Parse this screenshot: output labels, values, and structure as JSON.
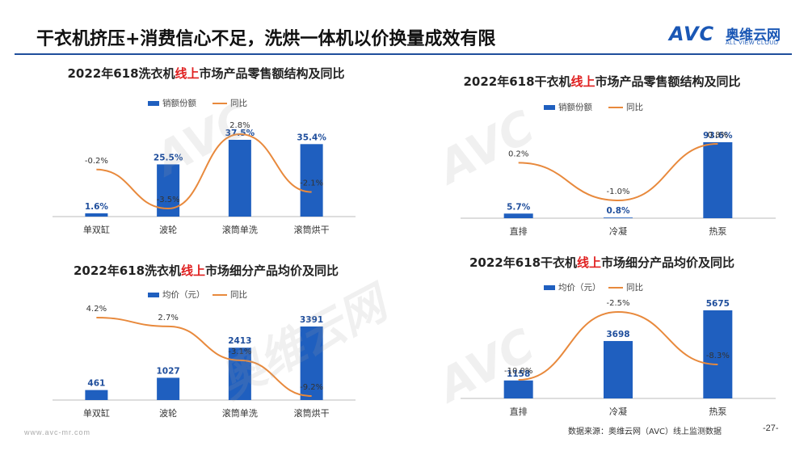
{
  "header": {
    "title": "干衣机挤压+消费信心不足，洗烘一体机以价换量成效有限",
    "logo_main": "AVC",
    "logo_cn": "奥维云网",
    "logo_en": "ALL VIEW CLOUD"
  },
  "watermark": {
    "main": "AVC",
    "cn": "奥维云网",
    "en": "ALL VIEW CLOUD"
  },
  "footer": {
    "source": "数据来源：奥维云网（AVC）线上监测数据",
    "page": "-27-",
    "url": "www.avc-mr.com"
  },
  "colors": {
    "bar": "#1f5fbf",
    "line": "#e8893c",
    "title_highlight": "#e02020",
    "rule": "#1f4e9c"
  },
  "chart_data": [
    {
      "type": "bar",
      "title_pre": "2022年618洗衣机",
      "title_hl": "线上",
      "title_post": "市场产品零售额结构及同比",
      "legend": [
        "销额份额",
        "同比"
      ],
      "categories": [
        "单双缸",
        "波轮",
        "滚筒单洗",
        "滚筒烘干"
      ],
      "series": [
        {
          "name": "销额份额",
          "values": [
            1.6,
            25.5,
            37.5,
            35.4
          ],
          "labels": [
            "1.6%",
            "25.5%",
            "37.5%",
            "35.4%"
          ]
        },
        {
          "name": "同比",
          "values": [
            -0.2,
            -3.5,
            2.8,
            -2.1
          ],
          "labels": [
            "-0.2%",
            "-3.5%",
            "2.8%",
            "-2.1%"
          ]
        }
      ]
    },
    {
      "type": "bar",
      "title_pre": "2022年618干衣机",
      "title_hl": "线上",
      "title_post": "市场产品零售额结构及同比",
      "legend": [
        "销额份额",
        "同比"
      ],
      "categories": [
        "直排",
        "冷凝",
        "热泵"
      ],
      "series": [
        {
          "name": "销额份额",
          "values": [
            5.7,
            0.8,
            93.6
          ],
          "labels": [
            "5.7%",
            "0.8%",
            "93.6%"
          ]
        },
        {
          "name": "同比",
          "values": [
            0.2,
            -1.0,
            0.8
          ],
          "labels": [
            "0.2%",
            "-1.0%",
            "0.8%"
          ]
        }
      ]
    },
    {
      "type": "bar",
      "title_pre": "2022年618洗衣机",
      "title_hl": "线上",
      "title_post": "市场细分产品均价及同比",
      "legend": [
        "均价（元）",
        "同比"
      ],
      "categories": [
        "单双缸",
        "波轮",
        "滚筒单洗",
        "滚筒烘干"
      ],
      "series": [
        {
          "name": "均价（元）",
          "values": [
            461,
            1027,
            2413,
            3391
          ],
          "labels": [
            "461",
            "1027",
            "2413",
            "3391"
          ]
        },
        {
          "name": "同比",
          "values": [
            4.2,
            2.7,
            -3.1,
            -9.2
          ],
          "labels": [
            "4.2%",
            "2.7%",
            "-3.1%",
            "-9.2%"
          ]
        }
      ]
    },
    {
      "type": "bar",
      "title_pre": "2022年618干衣机",
      "title_hl": "线上",
      "title_post": "市场细分产品均价及同比",
      "legend": [
        "均价（元）",
        "同比"
      ],
      "categories": [
        "直排",
        "冷凝",
        "热泵"
      ],
      "series": [
        {
          "name": "均价（元）",
          "values": [
            1158,
            3698,
            5675
          ],
          "labels": [
            "1158",
            "3698",
            "5675"
          ]
        },
        {
          "name": "同比",
          "values": [
            -10.0,
            -2.5,
            -8.3
          ],
          "labels": [
            "-10.0%",
            "-2.5%",
            "-8.3%"
          ]
        }
      ]
    }
  ]
}
